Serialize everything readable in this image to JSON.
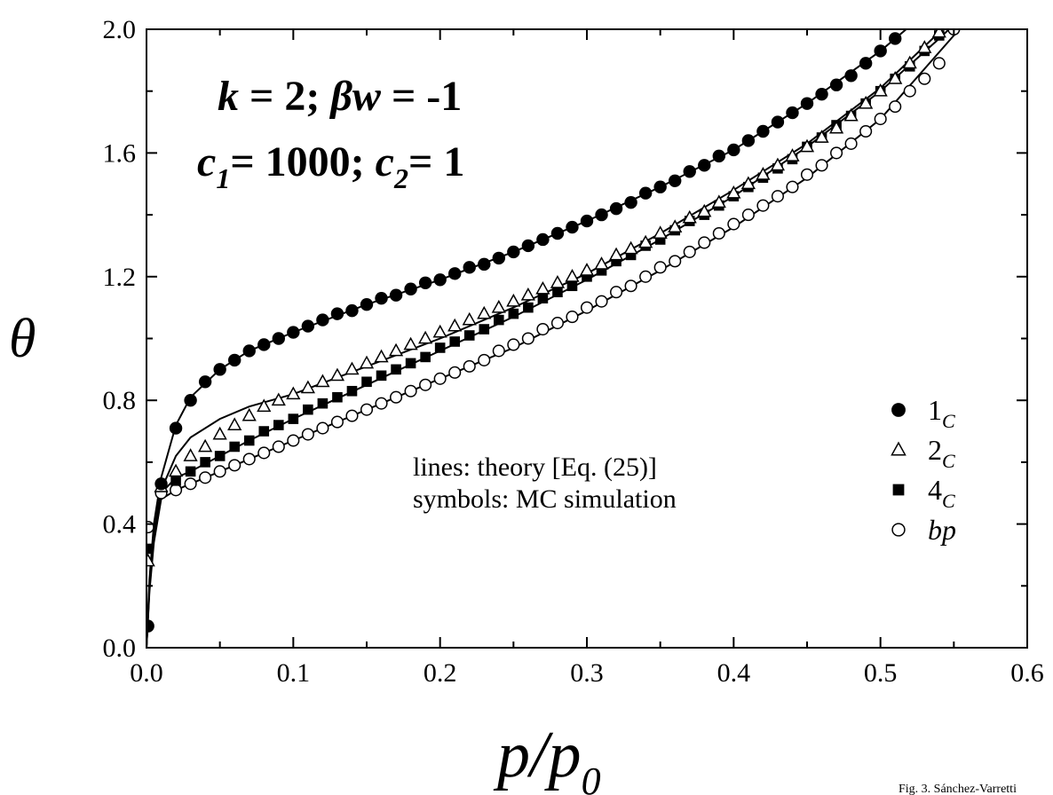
{
  "chart_data": {
    "type": "scatter",
    "xlabel": {
      "main": "p/p",
      "sub": "0"
    },
    "ylabel": "θ",
    "xlim": [
      0.0,
      0.6
    ],
    "ylim": [
      0.0,
      2.0
    ],
    "x_ticks": [
      "0.0",
      "0.1",
      "0.2",
      "0.3",
      "0.4",
      "0.5",
      "0.6"
    ],
    "y_ticks": [
      "0.0",
      "0.4",
      "0.8",
      "1.2",
      "1.6",
      "2.0"
    ],
    "annotations": {
      "params_line1": {
        "k": "k",
        "eq1": " = 2; ",
        "beta_w": "βw",
        "eq2": " = -1"
      },
      "params_line2": {
        "c": "c",
        "sub1": "1",
        "val1": "= 1000; ",
        "c2": "c",
        "sub2": "2",
        "val2": "= 1"
      },
      "note_line1": "lines: theory [Eq. (25)]",
      "note_line2": "symbols: MC simulation"
    },
    "legend_position": "bottom-right",
    "legend": [
      {
        "marker": "filled-circle",
        "label": "1",
        "sub": "C"
      },
      {
        "marker": "open-triangle",
        "label": "2",
        "sub": "C"
      },
      {
        "marker": "filled-square",
        "label": "4",
        "sub": "C"
      },
      {
        "marker": "open-circle",
        "label": "bp",
        "sub": ""
      }
    ],
    "series": [
      {
        "name": "1C",
        "marker": "filled-circle",
        "x": [
          0.001,
          0.01,
          0.02,
          0.03,
          0.04,
          0.05,
          0.06,
          0.07,
          0.08,
          0.09,
          0.1,
          0.11,
          0.12,
          0.13,
          0.14,
          0.15,
          0.16,
          0.17,
          0.18,
          0.19,
          0.2,
          0.21,
          0.22,
          0.23,
          0.24,
          0.25,
          0.26,
          0.27,
          0.28,
          0.29,
          0.3,
          0.31,
          0.32,
          0.33,
          0.34,
          0.35,
          0.36,
          0.37,
          0.38,
          0.39,
          0.4,
          0.41,
          0.42,
          0.43,
          0.44,
          0.45,
          0.46,
          0.47,
          0.48,
          0.49,
          0.5,
          0.51,
          0.52,
          0.53
        ],
        "y": [
          0.07,
          0.53,
          0.71,
          0.8,
          0.86,
          0.9,
          0.93,
          0.96,
          0.98,
          1.0,
          1.02,
          1.04,
          1.06,
          1.08,
          1.09,
          1.11,
          1.13,
          1.14,
          1.16,
          1.18,
          1.19,
          1.21,
          1.23,
          1.24,
          1.26,
          1.28,
          1.3,
          1.32,
          1.34,
          1.36,
          1.38,
          1.4,
          1.42,
          1.44,
          1.47,
          1.49,
          1.51,
          1.54,
          1.56,
          1.59,
          1.61,
          1.64,
          1.67,
          1.7,
          1.73,
          1.76,
          1.79,
          1.82,
          1.85,
          1.89,
          1.93,
          1.97,
          2.02,
          2.06
        ]
      },
      {
        "name": "2C",
        "marker": "open-triangle",
        "x": [
          0.001,
          0.01,
          0.02,
          0.03,
          0.04,
          0.05,
          0.06,
          0.07,
          0.08,
          0.09,
          0.1,
          0.11,
          0.12,
          0.13,
          0.14,
          0.15,
          0.16,
          0.17,
          0.18,
          0.19,
          0.2,
          0.21,
          0.22,
          0.23,
          0.24,
          0.25,
          0.26,
          0.27,
          0.28,
          0.29,
          0.3,
          0.31,
          0.32,
          0.33,
          0.34,
          0.35,
          0.36,
          0.37,
          0.38,
          0.39,
          0.4,
          0.41,
          0.42,
          0.43,
          0.44,
          0.45,
          0.46,
          0.47,
          0.48,
          0.49,
          0.5,
          0.51,
          0.52,
          0.53,
          0.54
        ],
        "y": [
          0.28,
          0.52,
          0.57,
          0.62,
          0.65,
          0.69,
          0.72,
          0.75,
          0.78,
          0.8,
          0.82,
          0.84,
          0.86,
          0.88,
          0.9,
          0.92,
          0.94,
          0.96,
          0.98,
          1.0,
          1.02,
          1.04,
          1.06,
          1.08,
          1.1,
          1.12,
          1.14,
          1.16,
          1.18,
          1.2,
          1.22,
          1.24,
          1.27,
          1.29,
          1.31,
          1.34,
          1.36,
          1.39,
          1.41,
          1.44,
          1.47,
          1.5,
          1.53,
          1.56,
          1.59,
          1.62,
          1.65,
          1.68,
          1.72,
          1.76,
          1.8,
          1.84,
          1.89,
          1.94,
          1.99
        ]
      },
      {
        "name": "4C",
        "marker": "filled-square",
        "x": [
          0.001,
          0.01,
          0.02,
          0.03,
          0.04,
          0.05,
          0.06,
          0.07,
          0.08,
          0.09,
          0.1,
          0.11,
          0.12,
          0.13,
          0.14,
          0.15,
          0.16,
          0.17,
          0.18,
          0.19,
          0.2,
          0.21,
          0.22,
          0.23,
          0.24,
          0.25,
          0.26,
          0.27,
          0.28,
          0.29,
          0.3,
          0.31,
          0.32,
          0.33,
          0.34,
          0.35,
          0.36,
          0.37,
          0.38,
          0.39,
          0.4,
          0.41,
          0.42,
          0.43,
          0.44,
          0.45,
          0.46,
          0.47,
          0.48,
          0.49,
          0.5,
          0.51,
          0.52,
          0.53,
          0.54
        ],
        "y": [
          0.32,
          0.52,
          0.54,
          0.57,
          0.6,
          0.62,
          0.65,
          0.67,
          0.7,
          0.72,
          0.74,
          0.77,
          0.79,
          0.81,
          0.83,
          0.86,
          0.88,
          0.9,
          0.92,
          0.94,
          0.97,
          0.99,
          1.01,
          1.03,
          1.06,
          1.08,
          1.1,
          1.13,
          1.15,
          1.17,
          1.2,
          1.22,
          1.25,
          1.27,
          1.3,
          1.32,
          1.35,
          1.38,
          1.4,
          1.43,
          1.46,
          1.49,
          1.52,
          1.55,
          1.58,
          1.62,
          1.65,
          1.69,
          1.72,
          1.76,
          1.8,
          1.84,
          1.88,
          1.93,
          1.98
        ]
      },
      {
        "name": "bp",
        "marker": "open-circle",
        "x": [
          0.001,
          0.01,
          0.02,
          0.03,
          0.04,
          0.05,
          0.06,
          0.07,
          0.08,
          0.09,
          0.1,
          0.11,
          0.12,
          0.13,
          0.14,
          0.15,
          0.16,
          0.17,
          0.18,
          0.19,
          0.2,
          0.21,
          0.22,
          0.23,
          0.24,
          0.25,
          0.26,
          0.27,
          0.28,
          0.29,
          0.3,
          0.31,
          0.32,
          0.33,
          0.34,
          0.35,
          0.36,
          0.37,
          0.38,
          0.39,
          0.4,
          0.41,
          0.42,
          0.43,
          0.44,
          0.45,
          0.46,
          0.47,
          0.48,
          0.49,
          0.5,
          0.51,
          0.52,
          0.53,
          0.54,
          0.55
        ],
        "y": [
          0.39,
          0.5,
          0.51,
          0.53,
          0.55,
          0.57,
          0.59,
          0.61,
          0.63,
          0.65,
          0.67,
          0.69,
          0.71,
          0.73,
          0.75,
          0.77,
          0.79,
          0.81,
          0.83,
          0.85,
          0.87,
          0.89,
          0.91,
          0.93,
          0.96,
          0.98,
          1.0,
          1.03,
          1.05,
          1.07,
          1.1,
          1.12,
          1.15,
          1.17,
          1.2,
          1.23,
          1.25,
          1.28,
          1.31,
          1.34,
          1.37,
          1.4,
          1.43,
          1.46,
          1.49,
          1.53,
          1.56,
          1.6,
          1.63,
          1.67,
          1.71,
          1.75,
          1.8,
          1.84,
          1.89,
          2.0
        ]
      }
    ],
    "theory_lines": [
      {
        "x": [
          0.0,
          0.002,
          0.005,
          0.01,
          0.02,
          0.03,
          0.05,
          0.07,
          0.1,
          0.15,
          0.2,
          0.25,
          0.3,
          0.35,
          0.4,
          0.45,
          0.5,
          0.53,
          0.55
        ],
        "y": [
          0.0,
          0.22,
          0.4,
          0.55,
          0.72,
          0.81,
          0.9,
          0.96,
          1.02,
          1.11,
          1.19,
          1.28,
          1.38,
          1.49,
          1.61,
          1.76,
          1.93,
          2.05,
          2.12
        ]
      },
      {
        "x": [
          0.0,
          0.002,
          0.005,
          0.01,
          0.02,
          0.03,
          0.05,
          0.07,
          0.1,
          0.15,
          0.2,
          0.25,
          0.3,
          0.35,
          0.4,
          0.45,
          0.5,
          0.54,
          0.56
        ],
        "y": [
          0.0,
          0.2,
          0.38,
          0.51,
          0.62,
          0.68,
          0.74,
          0.78,
          0.82,
          0.91,
          1.0,
          1.1,
          1.21,
          1.34,
          1.48,
          1.63,
          1.81,
          1.99,
          2.08
        ]
      },
      {
        "x": [
          0.0,
          0.002,
          0.005,
          0.01,
          0.02,
          0.03,
          0.05,
          0.07,
          0.1,
          0.15,
          0.2,
          0.25,
          0.3,
          0.35,
          0.4,
          0.45,
          0.5,
          0.54,
          0.56
        ],
        "y": [
          0.0,
          0.19,
          0.36,
          0.5,
          0.55,
          0.57,
          0.62,
          0.67,
          0.74,
          0.85,
          0.96,
          1.07,
          1.19,
          1.32,
          1.46,
          1.62,
          1.8,
          1.97,
          2.06
        ]
      },
      {
        "x": [
          0.0,
          0.002,
          0.005,
          0.01,
          0.02,
          0.03,
          0.05,
          0.07,
          0.1,
          0.15,
          0.2,
          0.25,
          0.3,
          0.35,
          0.4,
          0.45,
          0.5,
          0.55,
          0.56
        ],
        "y": [
          0.0,
          0.18,
          0.34,
          0.48,
          0.51,
          0.53,
          0.57,
          0.61,
          0.67,
          0.77,
          0.87,
          0.97,
          1.09,
          1.22,
          1.36,
          1.52,
          1.71,
          1.98,
          2.03
        ]
      }
    ]
  },
  "footer_text": "Fig. 3. Sánchez-Varretti"
}
